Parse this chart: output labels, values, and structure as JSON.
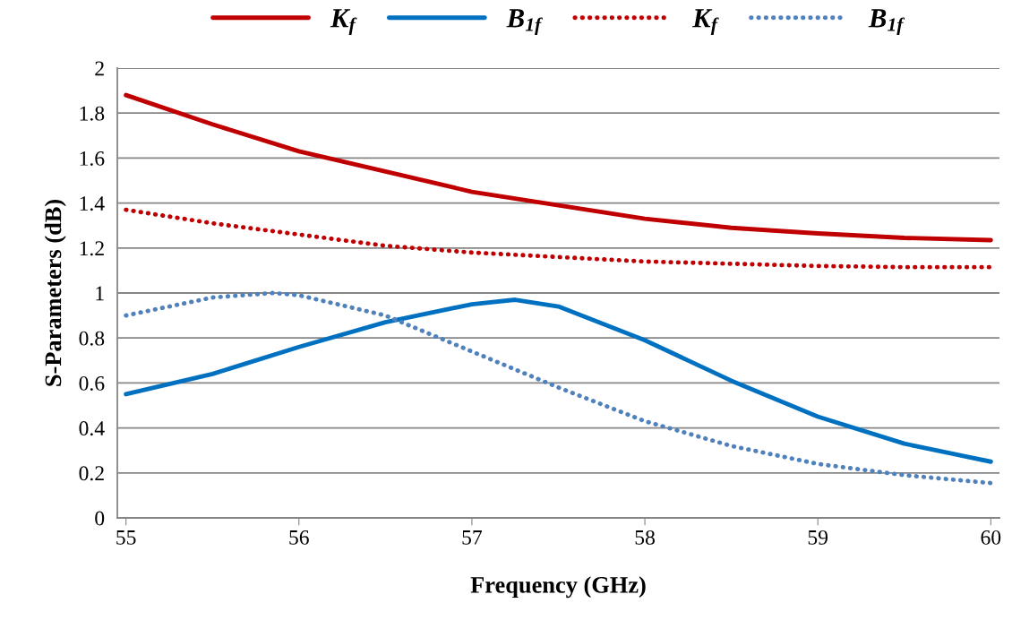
{
  "chart_data": {
    "type": "line",
    "xlabel": "Frequency (GHz)",
    "ylabel": "S-Parameters (dB)",
    "x": [
      55,
      55.5,
      56,
      56.5,
      57,
      57.25,
      57.5,
      58,
      58.5,
      59,
      59.5,
      60
    ],
    "xlim": [
      54.95,
      60.05
    ],
    "xticks": [
      55,
      56,
      57,
      58,
      59,
      60
    ],
    "ylim": [
      0,
      2
    ],
    "yticks": [
      0,
      0.2,
      0.4,
      0.6,
      0.8,
      1,
      1.2,
      1.4,
      1.6,
      1.8,
      2
    ],
    "grid": "y",
    "legend": "top",
    "marker": "none",
    "series": [
      {
        "name": "K$_{f}$",
        "color": "#c00000",
        "line_style": "solid",
        "values": [
          1.88,
          1.75,
          1.63,
          1.54,
          1.45,
          1.42,
          1.39,
          1.33,
          1.29,
          1.265,
          1.245,
          1.235
        ]
      },
      {
        "name": "B$_{1f}$",
        "color": "#0070c0",
        "line_style": "solid",
        "values": [
          0.55,
          0.64,
          0.76,
          0.87,
          0.95,
          0.97,
          0.94,
          0.79,
          0.61,
          0.45,
          0.33,
          0.25
        ]
      },
      {
        "name": "K$_{f}$",
        "color": "#c00000",
        "line_style": "dotted",
        "values": [
          1.37,
          1.31,
          1.26,
          1.21,
          1.18,
          1.17,
          1.16,
          1.14,
          1.13,
          1.12,
          1.115,
          1.115
        ]
      },
      {
        "name": "B$_{1f}$",
        "color": "#4f81bd",
        "line_style": "dotted",
        "x": [
          55,
          55.5,
          55.85,
          56,
          56.5,
          57,
          57.5,
          58,
          58.5,
          59,
          59.5,
          60
        ],
        "values": [
          0.9,
          0.98,
          1.0,
          0.99,
          0.9,
          0.74,
          0.58,
          0.43,
          0.32,
          0.24,
          0.19,
          0.155
        ]
      }
    ]
  }
}
